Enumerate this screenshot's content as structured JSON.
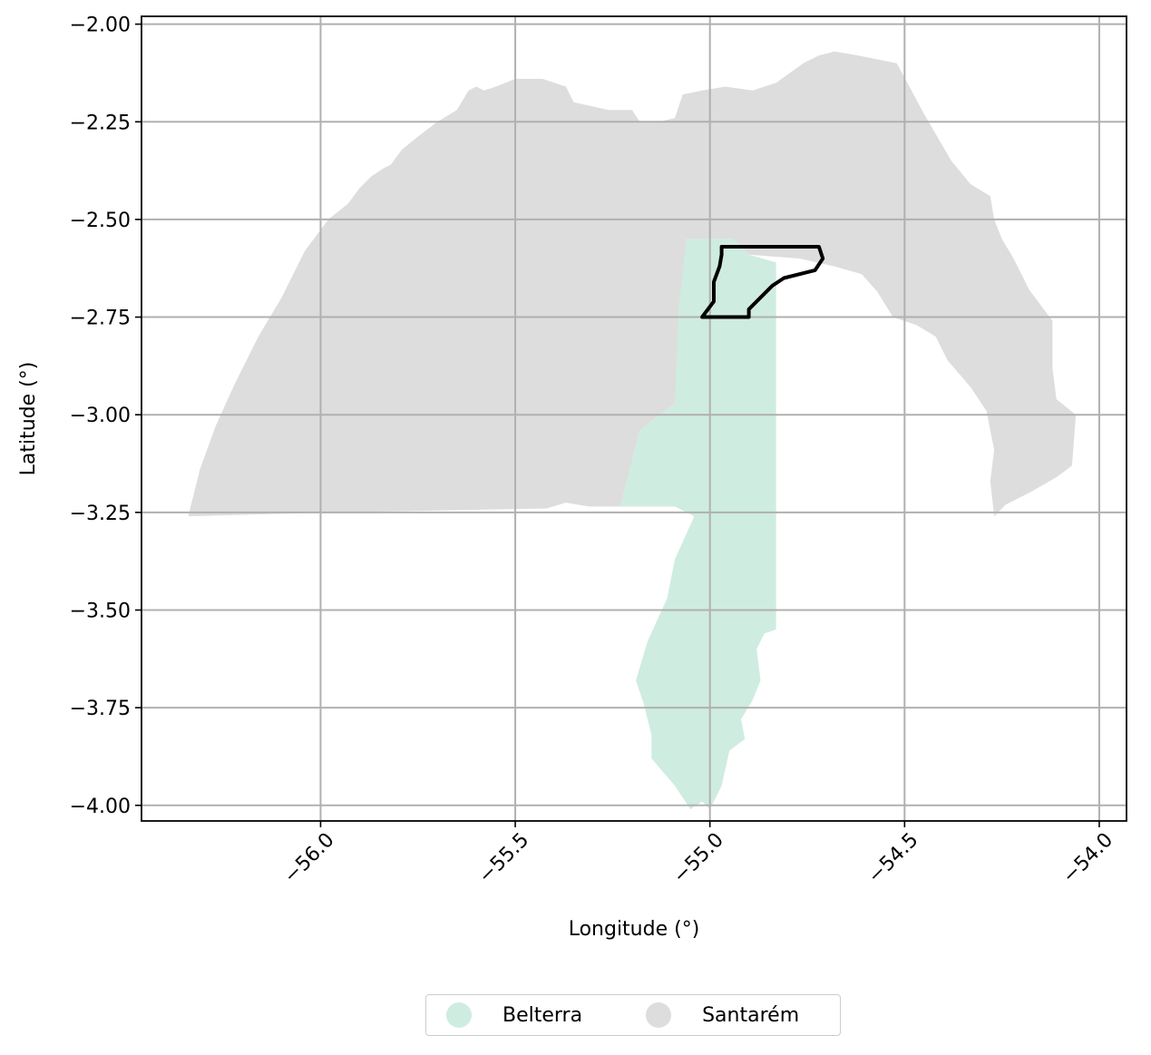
{
  "chart_data": {
    "type": "map",
    "xlabel": "Longitude (°)",
    "ylabel": "Latitude (°)",
    "xlim": [
      -56.46,
      -53.93
    ],
    "ylim": [
      -4.04,
      -1.98
    ],
    "x_ticks": [
      -56.0,
      -55.5,
      -55.0,
      -54.5,
      -54.0
    ],
    "x_tick_labels": [
      "−56.0",
      "−55.5",
      "−55.0",
      "−54.5",
      "−54.0"
    ],
    "y_ticks": [
      -2.0,
      -2.25,
      -2.5,
      -2.75,
      -3.0,
      -3.25,
      -3.5,
      -3.75,
      -4.0
    ],
    "y_tick_labels": [
      "−2.00",
      "−2.25",
      "−2.50",
      "−2.75",
      "−3.00",
      "−3.25",
      "−3.50",
      "−3.75",
      "−4.00"
    ],
    "grid": true,
    "legend_position": "bottom-center",
    "regions": [
      {
        "name": "Santarém",
        "color": "#dddddd",
        "coords": [
          [
            -56.34,
            -3.26
          ],
          [
            -55.96,
            -3.25
          ],
          [
            -55.42,
            -3.24
          ],
          [
            -55.37,
            -3.225
          ],
          [
            -55.31,
            -3.235
          ],
          [
            -55.23,
            -3.235
          ],
          [
            -55.18,
            -3.04
          ],
          [
            -55.09,
            -2.97
          ],
          [
            -55.06,
            -2.55
          ],
          [
            -54.94,
            -2.55
          ],
          [
            -54.9,
            -2.59
          ],
          [
            -54.77,
            -2.6
          ],
          [
            -54.68,
            -2.62
          ],
          [
            -54.61,
            -2.64
          ],
          [
            -54.57,
            -2.685
          ],
          [
            -54.53,
            -2.75
          ],
          [
            -54.47,
            -2.77
          ],
          [
            -54.42,
            -2.8
          ],
          [
            -54.39,
            -2.86
          ],
          [
            -54.33,
            -2.93
          ],
          [
            -54.29,
            -2.99
          ],
          [
            -54.27,
            -3.09
          ],
          [
            -54.28,
            -3.17
          ],
          [
            -54.27,
            -3.26
          ],
          [
            -54.24,
            -3.23
          ],
          [
            -54.18,
            -3.2
          ],
          [
            -54.11,
            -3.16
          ],
          [
            -54.07,
            -3.13
          ],
          [
            -54.06,
            -3.0
          ],
          [
            -54.11,
            -2.96
          ],
          [
            -54.12,
            -2.88
          ],
          [
            -54.12,
            -2.76
          ],
          [
            -54.18,
            -2.68
          ],
          [
            -54.22,
            -2.6
          ],
          [
            -54.25,
            -2.55
          ],
          [
            -54.27,
            -2.5
          ],
          [
            -54.28,
            -2.44
          ],
          [
            -54.33,
            -2.41
          ],
          [
            -54.38,
            -2.35
          ],
          [
            -54.45,
            -2.23
          ],
          [
            -54.52,
            -2.1
          ],
          [
            -54.62,
            -2.08
          ],
          [
            -54.68,
            -2.07
          ],
          [
            -54.72,
            -2.08
          ],
          [
            -54.76,
            -2.1
          ],
          [
            -54.83,
            -2.15
          ],
          [
            -54.89,
            -2.17
          ],
          [
            -54.96,
            -2.16
          ],
          [
            -55.02,
            -2.17
          ],
          [
            -55.07,
            -2.18
          ],
          [
            -55.09,
            -2.24
          ],
          [
            -55.13,
            -2.25
          ],
          [
            -55.18,
            -2.25
          ],
          [
            -55.2,
            -2.22
          ],
          [
            -55.26,
            -2.22
          ],
          [
            -55.35,
            -2.2
          ],
          [
            -55.37,
            -2.16
          ],
          [
            -55.43,
            -2.14
          ],
          [
            -55.5,
            -2.14
          ],
          [
            -55.55,
            -2.16
          ],
          [
            -55.58,
            -2.17
          ],
          [
            -55.6,
            -2.16
          ],
          [
            -55.62,
            -2.17
          ],
          [
            -55.65,
            -2.22
          ],
          [
            -55.7,
            -2.25
          ],
          [
            -55.74,
            -2.28
          ],
          [
            -55.79,
            -2.32
          ],
          [
            -55.82,
            -2.36
          ],
          [
            -55.84,
            -2.37
          ],
          [
            -55.87,
            -2.39
          ],
          [
            -55.9,
            -2.42
          ],
          [
            -55.93,
            -2.46
          ],
          [
            -55.98,
            -2.5
          ],
          [
            -56.04,
            -2.58
          ],
          [
            -56.1,
            -2.7
          ],
          [
            -56.16,
            -2.8
          ],
          [
            -56.22,
            -2.92
          ],
          [
            -56.27,
            -3.03
          ],
          [
            -56.31,
            -3.14
          ]
        ]
      },
      {
        "name": "Belterra",
        "color": "#cfece0",
        "coords": [
          [
            -55.06,
            -2.55
          ],
          [
            -54.94,
            -2.55
          ],
          [
            -54.9,
            -2.59
          ],
          [
            -54.83,
            -2.61
          ],
          [
            -54.83,
            -3.55
          ],
          [
            -54.86,
            -3.56
          ],
          [
            -54.88,
            -3.6
          ],
          [
            -54.87,
            -3.68
          ],
          [
            -54.89,
            -3.73
          ],
          [
            -54.92,
            -3.78
          ],
          [
            -54.91,
            -3.83
          ],
          [
            -54.95,
            -3.86
          ],
          [
            -54.97,
            -3.95
          ],
          [
            -55.0,
            -4.01
          ],
          [
            -55.02,
            -3.99
          ],
          [
            -55.05,
            -4.01
          ],
          [
            -55.09,
            -3.95
          ],
          [
            -55.15,
            -3.88
          ],
          [
            -55.15,
            -3.82
          ],
          [
            -55.17,
            -3.74
          ],
          [
            -55.19,
            -3.68
          ],
          [
            -55.16,
            -3.58
          ],
          [
            -55.11,
            -3.47
          ],
          [
            -55.09,
            -3.37
          ],
          [
            -55.04,
            -3.26
          ],
          [
            -55.09,
            -3.235
          ],
          [
            -55.23,
            -3.235
          ],
          [
            -55.18,
            -3.04
          ],
          [
            -55.09,
            -2.97
          ],
          [
            -55.08,
            -2.72
          ]
        ]
      }
    ],
    "highlight_outline": {
      "color": "#000000",
      "coords": [
        [
          -54.97,
          -2.57
        ],
        [
          -54.72,
          -2.57
        ],
        [
          -54.71,
          -2.6
        ],
        [
          -54.73,
          -2.63
        ],
        [
          -54.81,
          -2.65
        ],
        [
          -54.84,
          -2.67
        ],
        [
          -54.88,
          -2.71
        ],
        [
          -54.9,
          -2.73
        ],
        [
          -54.9,
          -2.75
        ],
        [
          -55.02,
          -2.75
        ],
        [
          -54.99,
          -2.71
        ],
        [
          -54.99,
          -2.66
        ],
        [
          -54.975,
          -2.62
        ],
        [
          -54.97,
          -2.59
        ]
      ]
    },
    "legend": [
      {
        "name": "Belterra",
        "color": "#cfece0"
      },
      {
        "name": "Santarém",
        "color": "#dddddd"
      }
    ]
  }
}
